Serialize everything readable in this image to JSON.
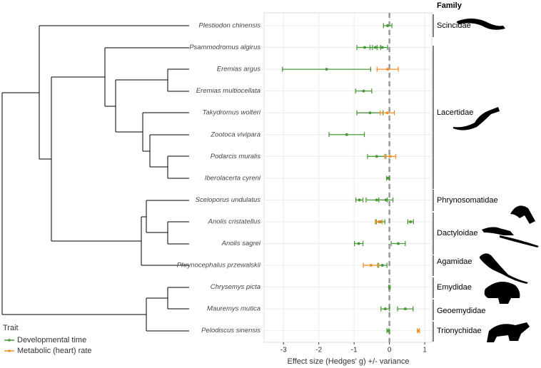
{
  "chart_data": {
    "type": "forest",
    "xlabel": "Effect size (Hedges' g) +/- variance",
    "xlim": [
      -3.55,
      1.2
    ],
    "xticks": [
      -3,
      -2,
      -1,
      0,
      1
    ],
    "grid": true,
    "reference_line": 0,
    "categories": [
      "Plestiodon chinensis",
      "Psammodromus algirus",
      "Eremias argus",
      "Eremias multiocellata",
      "Takydromus wolteri",
      "Zootoca vivipara",
      "Podarcis muralis",
      "Iberolacerta cyreni",
      "Sceloporus undulatus",
      "Anolis cristatellus",
      "Anolis sagrei",
      "Phrynocephalus przewalskii",
      "Chrysemys picta",
      "Mauremys mutica",
      "Pelodiscus sinensis"
    ],
    "legend_title": "Trait",
    "series": [
      {
        "name": "Developmental time",
        "color": "#4c9a3c",
        "points": [
          {
            "species": "Plestiodon chinensis",
            "value": -0.05,
            "error": 0.12
          },
          {
            "species": "Psammodromus algirus",
            "value": -0.7,
            "error": 0.22
          },
          {
            "species": "Psammodromus algirus",
            "value": -0.4,
            "error": 0.15
          },
          {
            "species": "Psammodromus algirus",
            "value": -0.2,
            "error": 0.15
          },
          {
            "species": "Eremias argus",
            "value": -1.78,
            "error": 1.25
          },
          {
            "species": "Eremias multiocellata",
            "value": -0.73,
            "error": 0.23
          },
          {
            "species": "Takydromus wolteri",
            "value": -0.55,
            "error": 0.37
          },
          {
            "species": "Zootoca vivipara",
            "value": -1.21,
            "error": 0.5
          },
          {
            "species": "Podarcis muralis",
            "value": -0.36,
            "error": 0.26
          },
          {
            "species": "Iberolacerta cyreni",
            "value": -0.04,
            "error": 0.04
          },
          {
            "species": "Sceloporus undulatus",
            "value": -0.85,
            "error": 0.1
          },
          {
            "species": "Sceloporus undulatus",
            "value": -0.36,
            "error": 0.3
          },
          {
            "species": "Sceloporus undulatus",
            "value": -0.1,
            "error": 0.2
          },
          {
            "species": "Anolis cristatellus",
            "value": -0.25,
            "error": 0.12
          },
          {
            "species": "Anolis cristatellus",
            "value": 0.6,
            "error": 0.08
          },
          {
            "species": "Anolis sagrei",
            "value": -0.87,
            "error": 0.12
          },
          {
            "species": "Anolis sagrei",
            "value": 0.25,
            "error": 0.2
          },
          {
            "species": "Phrynocephalus przewalskii",
            "value": -0.2,
            "error": 0.13
          },
          {
            "species": "Chrysemys picta",
            "value": 0.0,
            "error": 0.02
          },
          {
            "species": "Mauremys mutica",
            "value": -0.12,
            "error": 0.12
          },
          {
            "species": "Mauremys mutica",
            "value": 0.45,
            "error": 0.22
          },
          {
            "species": "Pelodiscus sinensis",
            "value": -0.04,
            "error": 0.03
          }
        ]
      },
      {
        "name": "Metabolic (heart) rate",
        "color": "#f0922b",
        "points": [
          {
            "species": "Eremias argus",
            "value": -0.05,
            "error": 0.3
          },
          {
            "species": "Takydromus wolteri",
            "value": -0.06,
            "error": 0.2
          },
          {
            "species": "Podarcis muralis",
            "value": 0.02,
            "error": 0.16
          },
          {
            "species": "Anolis cristatellus",
            "value": -0.3,
            "error": 0.1
          },
          {
            "species": "Phrynocephalus przewalskii",
            "value": -0.52,
            "error": 0.22
          },
          {
            "species": "Pelodiscus sinensis",
            "value": 0.82,
            "error": 0.03
          }
        ]
      }
    ]
  },
  "families": {
    "title": "Family",
    "labels": [
      "Scincidae",
      "Lacertidae",
      "Phrynosomatidae",
      "Dactyloidae",
      "Agamidae",
      "Emydidae",
      "Geoemydidae",
      "Trionychidae"
    ]
  }
}
